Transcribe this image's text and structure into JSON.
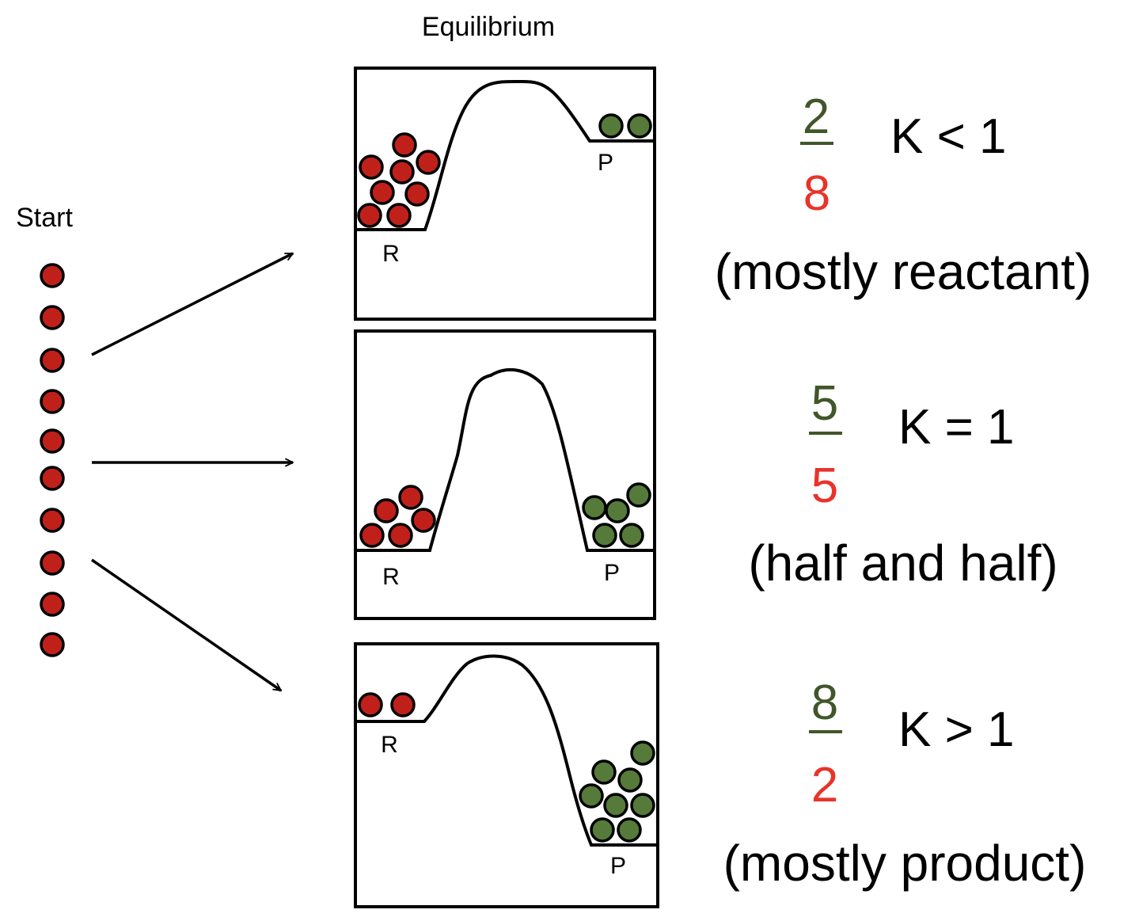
{
  "labels": {
    "start": "Start",
    "equilibrium": "Equilibrium",
    "reactant": "R",
    "product": "P"
  },
  "colors": {
    "reactant": "#c0201a",
    "product": "#557a3a",
    "numerator_text": "#41562a",
    "denominator_text": "#e8332a",
    "line": "#000000"
  },
  "start_molecule_count": 10,
  "panels": [
    {
      "numerator": "2",
      "denominator": "8",
      "k_label": "K < 1",
      "description": "(mostly reactant)",
      "reactant_count": 8,
      "product_count": 2
    },
    {
      "numerator": "5",
      "denominator": "5",
      "k_label": "K = 1",
      "description": "(half and half)",
      "reactant_count": 5,
      "product_count": 5
    },
    {
      "numerator": "8",
      "denominator": "2",
      "k_label": "K > 1",
      "description": "(mostly product)",
      "reactant_count": 2,
      "product_count": 8
    }
  ]
}
